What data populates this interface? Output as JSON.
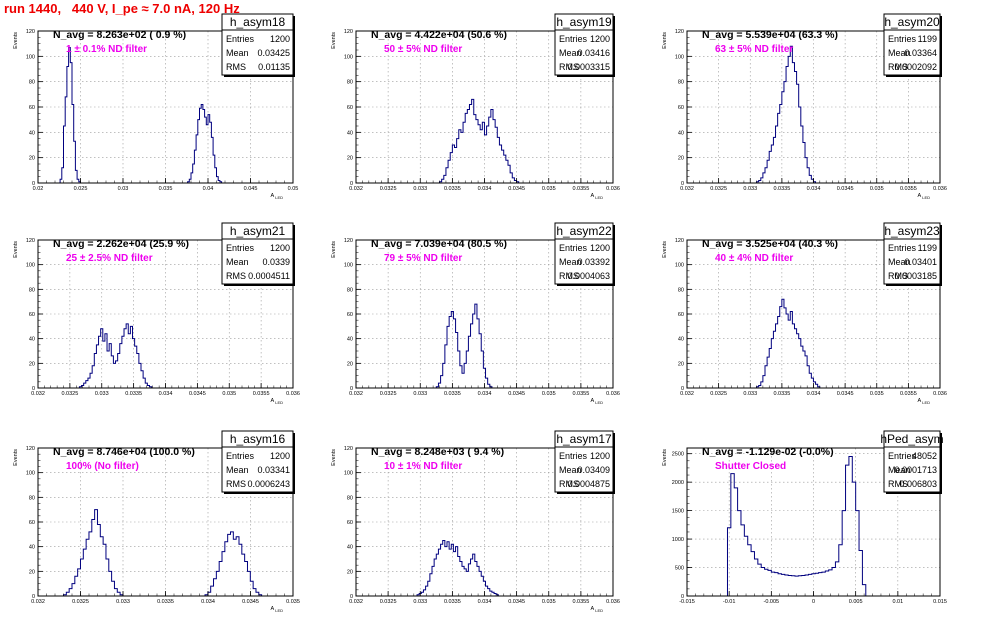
{
  "page": {
    "title": "run 1440,   440 V, I_pe ≈ 7.0 nA, 120 Hz"
  },
  "stat_labels": {
    "entries": "Entries",
    "mean": "Mean",
    "rms": "RMS"
  },
  "colors": {
    "histogram": "#00007f",
    "annotation": "#ee00ee",
    "title": "#ee0000",
    "grid": "#b4b4b4"
  },
  "chart_data": [
    {
      "type": "histogram",
      "name": "h_asym18",
      "title": "N_avg = 8.263e+02 ( 0.9 %)",
      "annotation": "1 ± 0.1% ND filter",
      "ylabel": "Events",
      "xlabel": "A_LED",
      "entries": "1200",
      "mean": "0.03425",
      "rms": "0.01135",
      "xlim": [
        0.02,
        0.05
      ],
      "ylim": [
        0,
        120
      ],
      "grid": true,
      "xticks": [
        0.02,
        0.025,
        0.03,
        0.035,
        0.04,
        0.045,
        0.05
      ],
      "xtick_labels": [
        "0.02",
        "0.025",
        "0.03",
        "0.035",
        "0.04",
        "0.045",
        "0.05"
      ],
      "yticks": [
        0,
        20,
        40,
        60,
        80,
        100,
        120
      ],
      "ytick_labels": [
        "0",
        "20",
        "40",
        "60",
        "80",
        "100",
        "120"
      ],
      "bin_start": 0.0226,
      "bin_width": 0.0002,
      "counts": [
        3,
        12,
        45,
        68,
        92,
        107,
        95,
        62,
        33,
        10,
        3,
        1,
        0,
        0,
        0,
        0,
        0,
        0,
        0,
        0,
        0,
        0,
        0,
        0,
        0,
        0,
        0,
        0,
        0,
        0,
        0,
        0,
        0,
        0,
        0,
        0,
        0,
        0,
        0,
        0,
        0,
        0,
        0,
        0,
        0,
        0,
        0,
        0,
        0,
        0,
        0,
        0,
        0,
        0,
        0,
        0,
        0,
        0,
        0,
        0,
        0,
        0,
        0,
        0,
        0,
        0,
        0,
        0,
        0,
        0,
        0,
        0,
        0,
        0,
        0,
        1,
        3,
        8,
        15,
        26,
        38,
        50,
        59,
        62,
        58,
        52,
        46,
        54,
        48,
        36,
        22,
        12,
        5,
        2,
        1
      ]
    },
    {
      "type": "histogram",
      "name": "h_asym19",
      "title": "N_avg = 4.422e+04 (50.6 %)",
      "annotation": "50 ± 5% ND filter",
      "ylabel": "Events",
      "xlabel": "A_LED",
      "entries": "1200",
      "mean": "0.03416",
      "rms": "0.0003315",
      "xlim": [
        0.032,
        0.036
      ],
      "ylim": [
        0,
        120
      ],
      "grid": true,
      "xticks": [
        0.032,
        0.0325,
        0.033,
        0.0335,
        0.034,
        0.0345,
        0.035,
        0.0355,
        0.036
      ],
      "xtick_labels": [
        "0.032",
        "0.0325",
        "0.033",
        "0.0335",
        "0.034",
        "0.0345",
        "0.035",
        "0.0355",
        "0.036"
      ],
      "yticks": [
        0,
        20,
        40,
        60,
        80,
        100,
        120
      ],
      "ytick_labels": [
        "0",
        "20",
        "40",
        "60",
        "80",
        "100",
        "120"
      ],
      "bin_start": 0.0333,
      "bin_width": 3.33e-05,
      "counts": [
        1,
        3,
        6,
        12,
        18,
        24,
        30,
        28,
        35,
        42,
        40,
        48,
        55,
        58,
        62,
        66,
        54,
        50,
        46,
        42,
        48,
        38,
        45,
        52,
        58,
        50,
        44,
        36,
        30,
        26,
        22,
        18,
        14,
        8,
        4,
        2,
        1
      ]
    },
    {
      "type": "histogram",
      "name": "h_asym20",
      "title": "N_avg = 5.539e+04 (63.3 %)",
      "annotation": "63 ± 5% ND filter",
      "ylabel": "Events",
      "xlabel": "A_LED",
      "entries": "1199",
      "mean": "0.03364",
      "rms": "0.0002092",
      "xlim": [
        0.032,
        0.036
      ],
      "ylim": [
        0,
        120
      ],
      "grid": true,
      "xticks": [
        0.032,
        0.0325,
        0.033,
        0.0335,
        0.034,
        0.0345,
        0.035,
        0.0355,
        0.036
      ],
      "xtick_labels": [
        "0.032",
        "0.0325",
        "0.033",
        "0.0335",
        "0.034",
        "0.0345",
        "0.035",
        "0.0355",
        "0.036"
      ],
      "yticks": [
        0,
        20,
        40,
        60,
        80,
        100,
        120
      ],
      "ytick_labels": [
        "0",
        "20",
        "40",
        "60",
        "80",
        "100",
        "120"
      ],
      "bin_start": 0.0331,
      "bin_width": 3.33e-05,
      "counts": [
        1,
        2,
        4,
        8,
        12,
        18,
        25,
        30,
        36,
        45,
        55,
        62,
        72,
        80,
        92,
        100,
        108,
        95,
        88,
        78,
        60,
        45,
        32,
        20,
        12,
        6,
        3,
        1
      ]
    },
    {
      "type": "histogram",
      "name": "h_asym21",
      "title": "N_avg = 2.262e+04 (25.9 %)",
      "annotation": "25 ± 2.5% ND filter",
      "ylabel": "Events",
      "xlabel": "A_LED",
      "entries": "1200",
      "mean": "0.0339",
      "rms": "0.0004511",
      "xlim": [
        0.032,
        0.036
      ],
      "ylim": [
        0,
        120
      ],
      "grid": true,
      "xticks": [
        0.032,
        0.0325,
        0.033,
        0.0335,
        0.034,
        0.0345,
        0.035,
        0.0355,
        0.036
      ],
      "xtick_labels": [
        "0.032",
        "0.0325",
        "0.033",
        "0.0335",
        "0.034",
        "0.0345",
        "0.035",
        "0.0355",
        "0.036"
      ],
      "yticks": [
        0,
        20,
        40,
        60,
        80,
        100,
        120
      ],
      "ytick_labels": [
        "0",
        "20",
        "40",
        "60",
        "80",
        "100",
        "120"
      ],
      "bin_start": 0.03265,
      "bin_width": 3.33e-05,
      "counts": [
        1,
        2,
        4,
        6,
        8,
        12,
        18,
        28,
        35,
        42,
        48,
        38,
        44,
        30,
        36,
        26,
        20,
        22,
        28,
        36,
        42,
        48,
        52,
        44,
        50,
        40,
        34,
        28,
        20,
        14,
        8,
        4,
        2,
        1
      ]
    },
    {
      "type": "histogram",
      "name": "h_asym22",
      "title": "N_avg = 7.039e+04 (80.5 %)",
      "annotation": "79 ± 5% ND filter",
      "ylabel": "Events",
      "xlabel": "A_LED",
      "entries": "1200",
      "mean": "0.03392",
      "rms": "0.0004063",
      "xlim": [
        0.032,
        0.036
      ],
      "ylim": [
        0,
        120
      ],
      "grid": true,
      "xticks": [
        0.032,
        0.0325,
        0.033,
        0.0335,
        0.034,
        0.0345,
        0.035,
        0.0355,
        0.036
      ],
      "xtick_labels": [
        "0.032",
        "0.0325",
        "0.033",
        "0.0335",
        "0.034",
        "0.0345",
        "0.035",
        "0.0355",
        "0.036"
      ],
      "yticks": [
        0,
        20,
        40,
        60,
        80,
        100,
        120
      ],
      "ytick_labels": [
        "0",
        "20",
        "40",
        "60",
        "80",
        "100",
        "120"
      ],
      "bin_start": 0.03325,
      "bin_width": 3.33e-05,
      "counts": [
        1,
        4,
        10,
        20,
        35,
        50,
        58,
        62,
        56,
        45,
        30,
        18,
        12,
        20,
        30,
        42,
        52,
        60,
        68,
        56,
        44,
        30,
        16,
        8,
        3,
        1
      ]
    },
    {
      "type": "histogram",
      "name": "h_asym23",
      "title": "N_avg = 3.525e+04 (40.3 %)",
      "annotation": "40 ± 4% ND filter",
      "ylabel": "Events",
      "xlabel": "A_LED",
      "entries": "1199",
      "mean": "0.03401",
      "rms": "0.0003185",
      "xlim": [
        0.032,
        0.036
      ],
      "ylim": [
        0,
        120
      ],
      "grid": true,
      "xticks": [
        0.032,
        0.0325,
        0.033,
        0.0335,
        0.034,
        0.0345,
        0.035,
        0.0355,
        0.036
      ],
      "xtick_labels": [
        "0.032",
        "0.0325",
        "0.033",
        "0.0335",
        "0.034",
        "0.0345",
        "0.035",
        "0.0355",
        "0.036"
      ],
      "yticks": [
        0,
        20,
        40,
        60,
        80,
        100,
        120
      ],
      "ytick_labels": [
        "0",
        "20",
        "40",
        "60",
        "80",
        "100",
        "120"
      ],
      "bin_start": 0.0331,
      "bin_width": 3.33e-05,
      "counts": [
        1,
        2,
        5,
        10,
        18,
        25,
        32,
        40,
        46,
        52,
        58,
        66,
        72,
        65,
        60,
        55,
        62,
        52,
        48,
        44,
        40,
        34,
        30,
        26,
        18,
        12,
        8,
        5,
        3,
        1
      ]
    },
    {
      "type": "histogram",
      "name": "h_asym16",
      "title": "N_avg = 8.746e+04 (100.0 %)",
      "annotation": "100% (No filter)",
      "ylabel": "Events",
      "xlabel": "A_LED",
      "entries": "1200",
      "mean": "0.03341",
      "rms": "0.0006243",
      "xlim": [
        0.032,
        0.035
      ],
      "ylim": [
        0,
        120
      ],
      "grid": true,
      "xticks": [
        0.032,
        0.0325,
        0.033,
        0.0335,
        0.034,
        0.0345,
        0.035
      ],
      "xtick_labels": [
        "0.032",
        "0.0325",
        "0.033",
        "0.0335",
        "0.034",
        "0.0345",
        "0.035"
      ],
      "yticks": [
        0,
        20,
        40,
        60,
        80,
        100,
        120
      ],
      "ytick_labels": [
        "0",
        "20",
        "40",
        "60",
        "80",
        "100",
        "120"
      ],
      "bin_start": 0.0323,
      "bin_width": 3.33e-05,
      "counts": [
        1,
        3,
        6,
        10,
        16,
        22,
        30,
        38,
        46,
        52,
        62,
        70,
        58,
        48,
        42,
        30,
        20,
        12,
        6,
        3,
        1,
        0,
        0,
        0,
        0,
        0,
        0,
        0,
        0,
        0,
        0,
        0,
        0,
        0,
        0,
        0,
        0,
        0,
        0,
        0,
        0,
        0,
        0,
        0,
        0,
        0,
        0,
        0,
        0,
        0,
        1,
        3,
        8,
        14,
        20,
        28,
        36,
        44,
        50,
        52,
        46,
        48,
        42,
        34,
        28,
        20,
        12,
        6,
        3,
        1
      ]
    },
    {
      "type": "histogram",
      "name": "h_asym17",
      "title": "N_avg = 8.248e+03 ( 9.4 %)",
      "annotation": "10 ± 1% ND filter",
      "ylabel": "Events",
      "xlabel": "A_LED",
      "entries": "1200",
      "mean": "0.03409",
      "rms": "0.0004875",
      "xlim": [
        0.032,
        0.036
      ],
      "ylim": [
        0,
        120
      ],
      "grid": true,
      "xticks": [
        0.032,
        0.0325,
        0.033,
        0.0335,
        0.034,
        0.0345,
        0.035,
        0.0355,
        0.036
      ],
      "xtick_labels": [
        "0.032",
        "0.0325",
        "0.033",
        "0.0335",
        "0.034",
        "0.0345",
        "0.035",
        "0.0355",
        "0.036"
      ],
      "yticks": [
        0,
        20,
        40,
        60,
        80,
        100,
        120
      ],
      "ytick_labels": [
        "0",
        "20",
        "40",
        "60",
        "80",
        "100",
        "120"
      ],
      "bin_start": 0.03295,
      "bin_width": 3.33e-05,
      "counts": [
        1,
        2,
        3,
        5,
        8,
        12,
        18,
        24,
        30,
        34,
        38,
        42,
        45,
        40,
        44,
        38,
        42,
        36,
        40,
        32,
        28,
        24,
        22,
        20,
        26,
        30,
        34,
        28,
        24,
        20,
        16,
        12,
        8,
        6,
        4,
        3,
        2,
        1
      ]
    },
    {
      "type": "histogram",
      "name": "hPed_asym",
      "title": "N_avg = -1.129e-02 (-0.0%)",
      "annotation": "Shutter Closed",
      "ylabel": "Events",
      "xlabel": "",
      "entries": "48052",
      "mean": "0.0001713",
      "rms": "0.006803",
      "xlim": [
        -0.015,
        0.015
      ],
      "ylim": [
        0,
        2600
      ],
      "grid": true,
      "xticks": [
        -0.015,
        -0.01,
        -0.005,
        0,
        0.005,
        0.01,
        0.015
      ],
      "xtick_labels": [
        "-0.015",
        "-0.01",
        "-0.005",
        "0",
        "0.005",
        "0.01",
        "0.015"
      ],
      "yticks": [
        0,
        500,
        1000,
        1500,
        2000,
        2500
      ],
      "ytick_labels": [
        "0",
        "500",
        "1000",
        "1500",
        "2000",
        "2500"
      ],
      "bin_start": -0.0102,
      "bin_width": 0.0004,
      "counts": [
        1200,
        2150,
        1900,
        1500,
        1250,
        1050,
        900,
        780,
        650,
        560,
        500,
        470,
        450,
        420,
        410,
        390,
        380,
        370,
        360,
        355,
        350,
        355,
        360,
        370,
        380,
        390,
        400,
        410,
        420,
        440,
        460,
        500,
        600,
        900,
        1500,
        2300,
        2450,
        2000,
        1500,
        800,
        200
      ]
    }
  ]
}
